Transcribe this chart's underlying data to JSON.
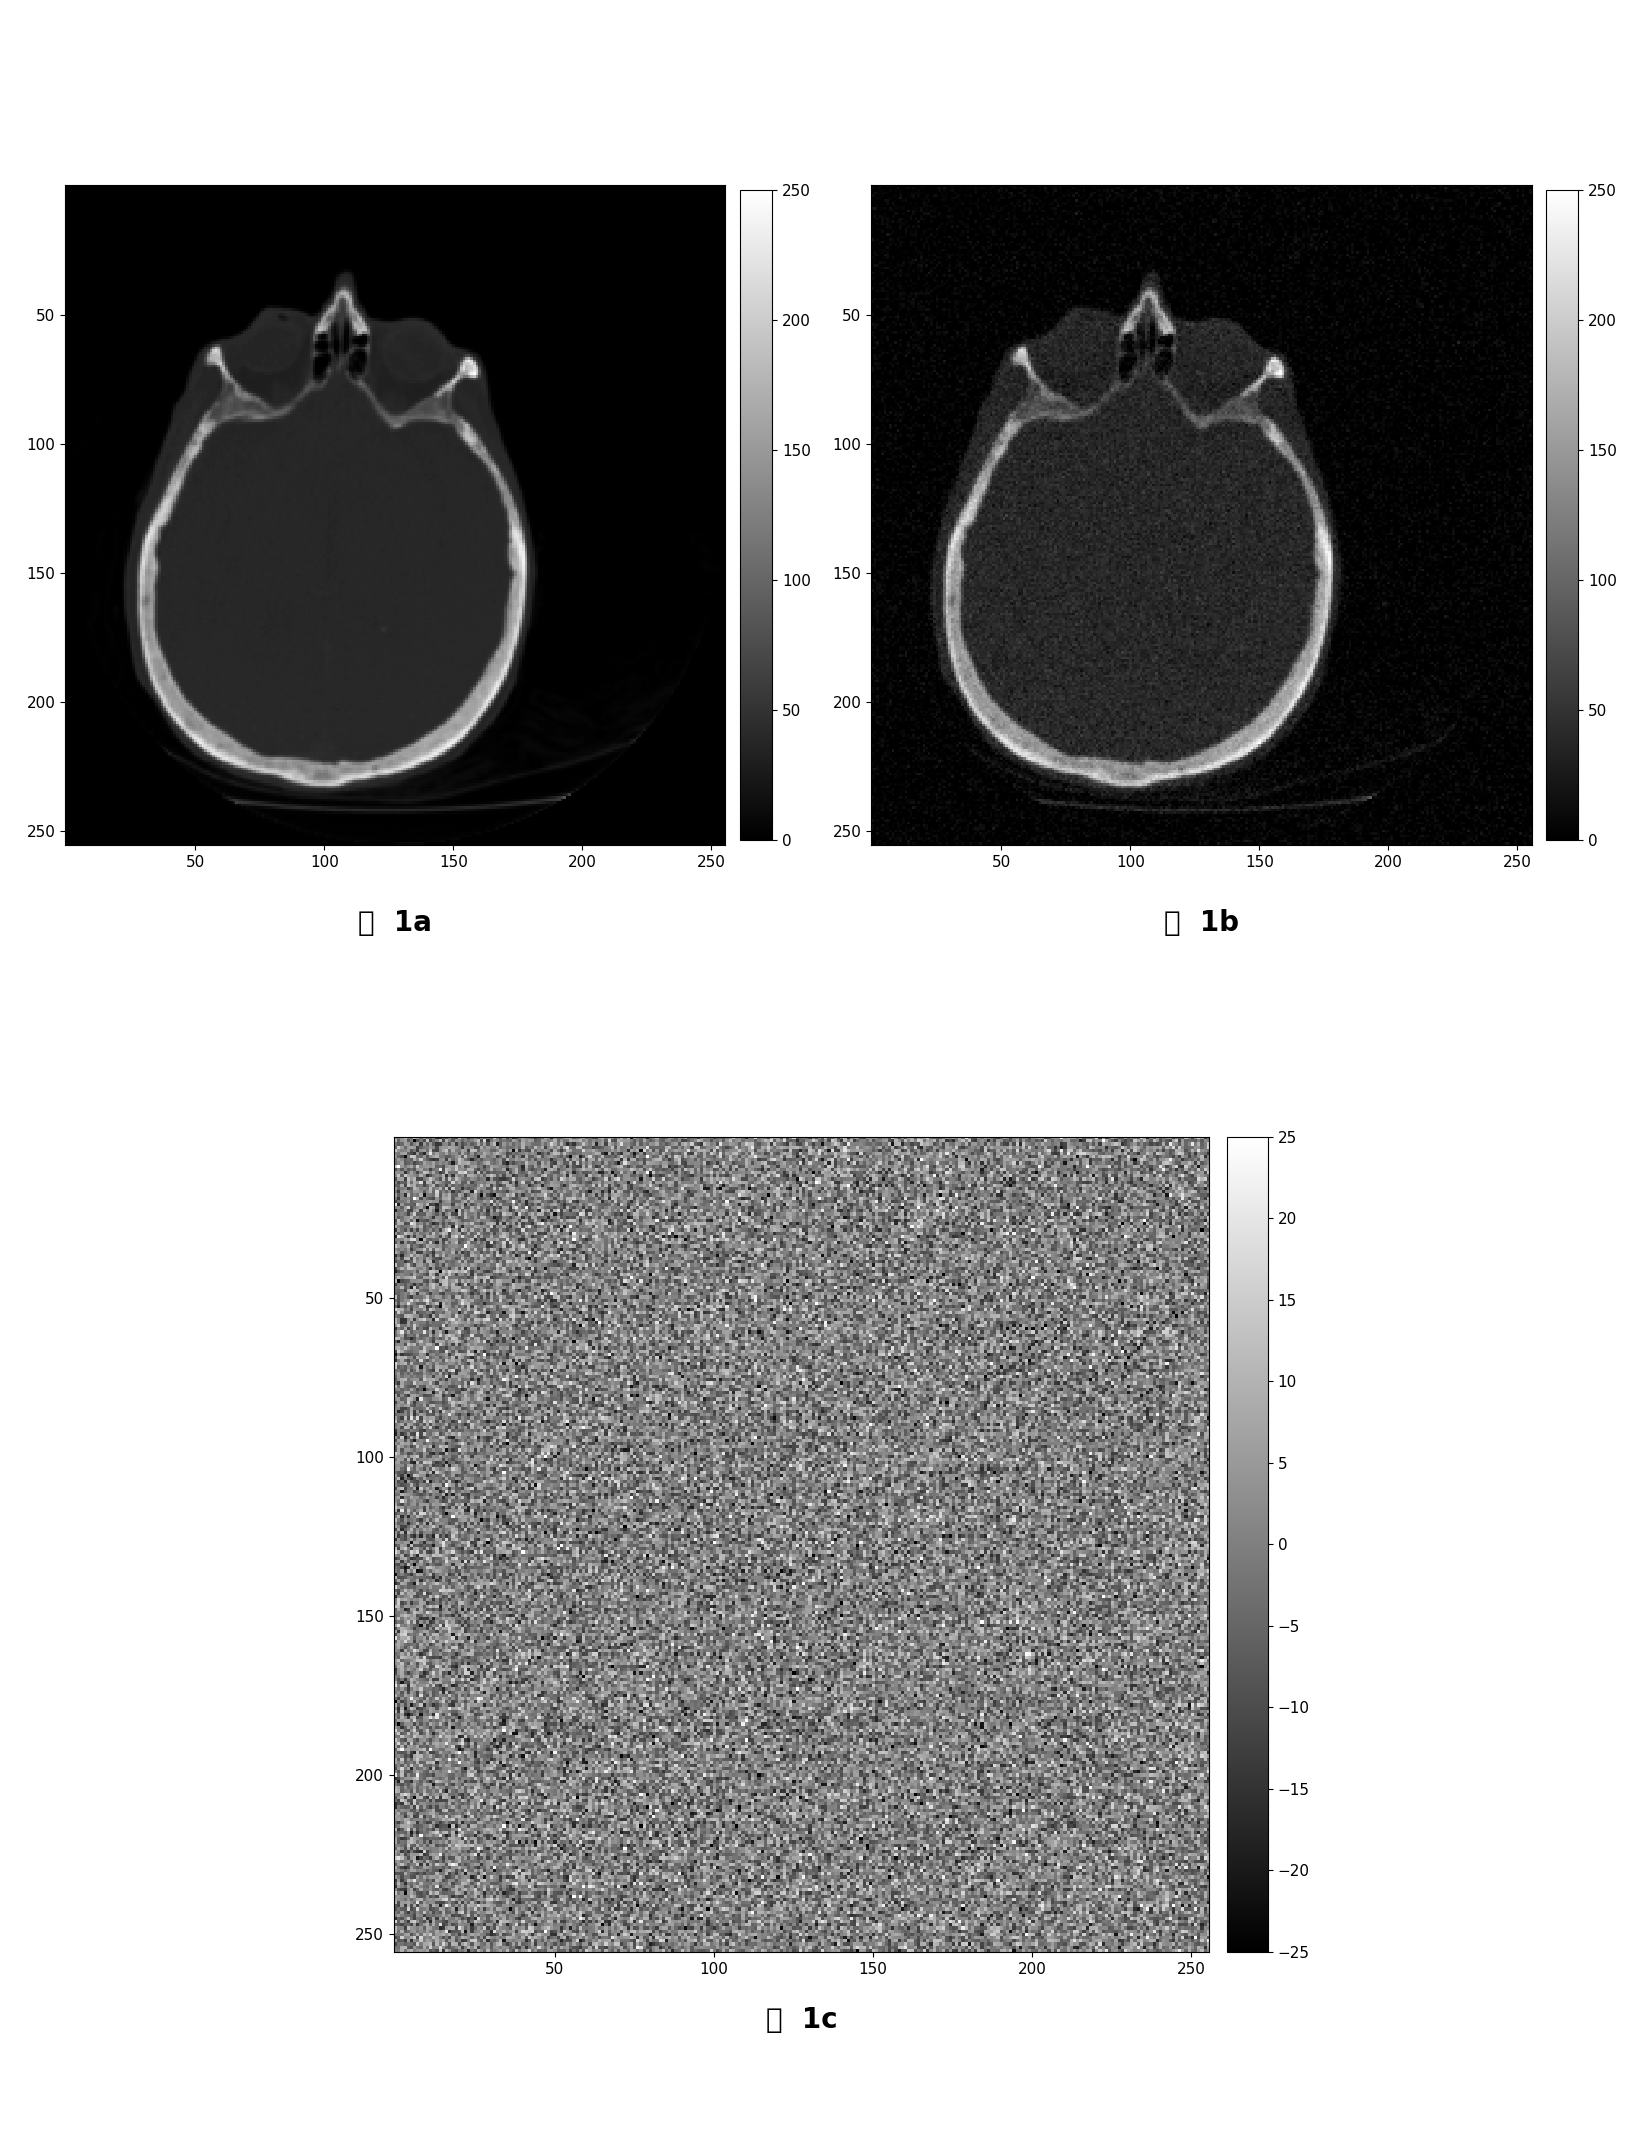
{
  "fig_width": 16.27,
  "fig_height": 21.45,
  "image_size": 256,
  "brain_vmin": 0,
  "brain_vmax": 250,
  "noise_vmin": -25,
  "noise_vmax": 25,
  "brain_cmap": "gray",
  "noise_cmap": "gray",
  "label_1a": "图  1a",
  "label_1b": "图  1b",
  "label_1c": "图  1c",
  "label_fontsize": 20,
  "tick_fontsize": 11,
  "colorbar_tick_fontsize": 11,
  "background_color": "#ffffff",
  "seed": 42,
  "noise_std": 8,
  "brain_ticks": [
    50,
    100,
    150,
    200,
    250
  ],
  "colorbar_ticks_brain": [
    0,
    50,
    100,
    150,
    200,
    250
  ],
  "colorbar_ticks_noise": [
    -25,
    -20,
    -15,
    -10,
    -5,
    0,
    5,
    10,
    15,
    20,
    25
  ]
}
